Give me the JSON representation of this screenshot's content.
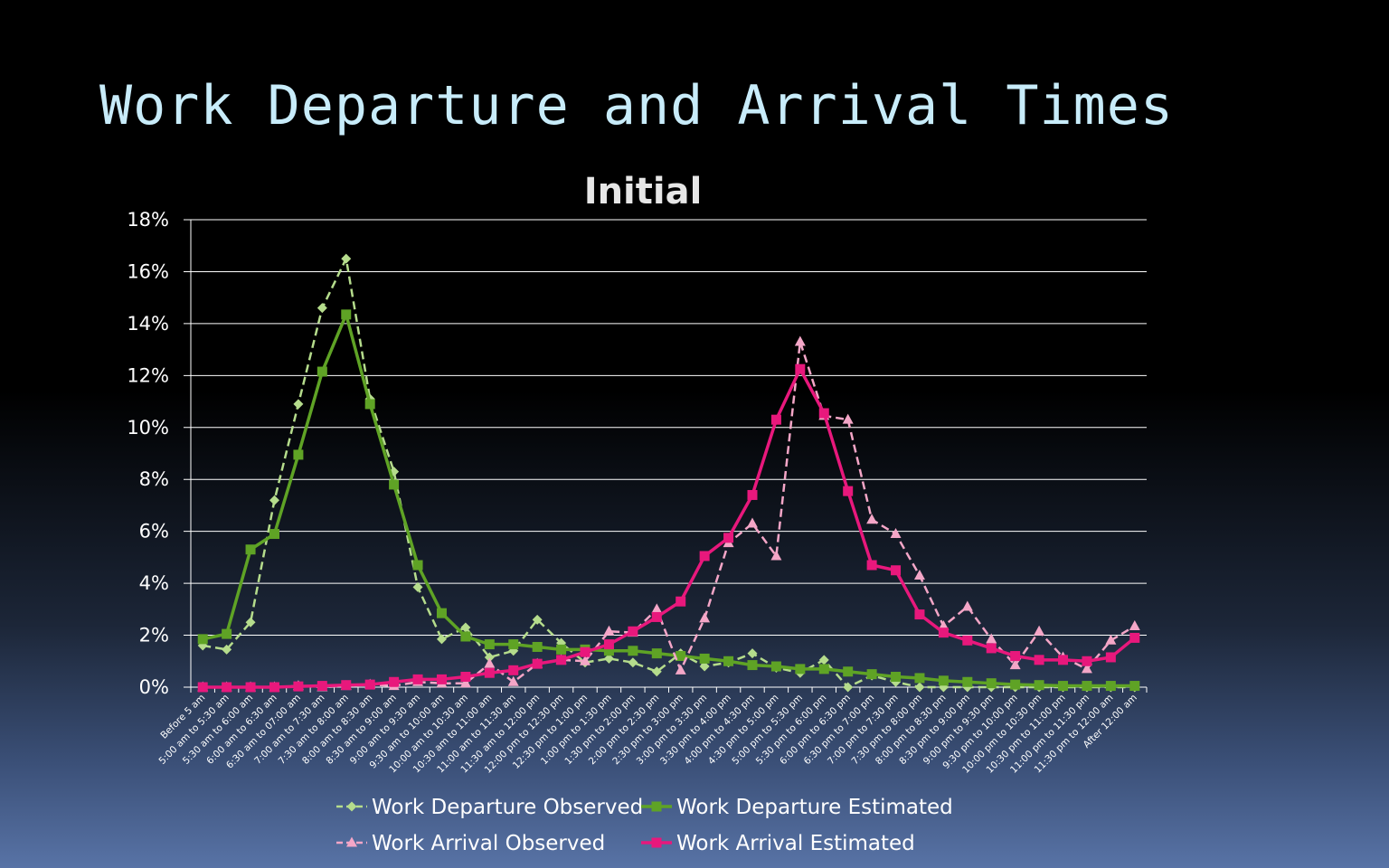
{
  "slide": {
    "title": "Work Departure and Arrival Times"
  },
  "chart_data": {
    "type": "line",
    "title": "Initial",
    "xlabel": "",
    "ylabel": "",
    "ylim": [
      0,
      18
    ],
    "y_tick_values": [
      0,
      2,
      4,
      6,
      8,
      10,
      12,
      14,
      16,
      18
    ],
    "y_tick_labels": [
      "0%",
      "2%",
      "4%",
      "6%",
      "8%",
      "10%",
      "12%",
      "14%",
      "16%",
      "18%"
    ],
    "grid": true,
    "legend_position": "bottom",
    "categories": [
      "Before 5 am",
      "5:00 am to 5:30 am",
      "5:30 am to 6:00 am",
      "6:00 am to 6:30 am",
      "6:30 am to 07:00 am",
      "7:00 am to 7:30 am",
      "7:30 am to 8:00 am",
      "8:00 am to 8:30 am",
      "8:30 am to 9:00 am",
      "9:00 am to 9:30 am",
      "9:30 am to 10:00 am",
      "10:00 am to 10:30 am",
      "10:30 am to 11:00 am",
      "11:00 am to 11:30 am",
      "11:30 am to 12:00 pm",
      "12:00 pm to 12:30 pm",
      "12:30 pm to 1:00 pm",
      "1:00 pm to 1:30 pm",
      "1:30 pm to 2:00 pm",
      "2:00 pm to 2:30 pm",
      "2:30 pm to 3:00 pm",
      "3:00 pm to 3:30 pm",
      "3:30 pm to 4:00 pm",
      "4:00 pm to 4:30 pm",
      "4:30 pm to 5:00 pm",
      "5:00 pm to 5:30 pm",
      "5:30 pm to 6:00 pm",
      "6:00 pm to 6:30 pm",
      "6:30 pm to 7:00 pm",
      "7:00 pm to 7:30 pm",
      "7:30 pm to 8:00 pm",
      "8:00 pm to 8:30 pm",
      "8:30 pm to 9:00 pm",
      "9:00 pm to 9:30 pm",
      "9:30 pm to 10:00 pm",
      "10:00 pm to 10:30 pm",
      "10:30 pm to 11:00 pm",
      "11:00 pm to 11:30 pm",
      "11:30 pm to 12:00 am",
      "After 12:00 am"
    ],
    "series": [
      {
        "name": "Work Departure Observed",
        "color": "#b5dc8c",
        "dashed": true,
        "marker": "diamond",
        "values": [
          1.6,
          1.45,
          2.5,
          7.2,
          10.9,
          14.6,
          16.5,
          11.1,
          8.3,
          3.85,
          1.85,
          2.3,
          1.15,
          1.4,
          2.6,
          1.7,
          0.95,
          1.1,
          0.95,
          0.6,
          1.3,
          0.8,
          0.95,
          1.3,
          0.75,
          0.55,
          1.05,
          0.0,
          0.45,
          0.2,
          0.0,
          0.0,
          0.0,
          0.0,
          0.0,
          0.0,
          0.0,
          0.0,
          0.0,
          0.0
        ]
      },
      {
        "name": "Work Departure Estimated",
        "color": "#5fa325",
        "dashed": false,
        "marker": "square",
        "values": [
          1.85,
          2.05,
          5.3,
          5.9,
          8.95,
          12.15,
          14.35,
          10.9,
          7.8,
          4.7,
          2.85,
          1.95,
          1.65,
          1.65,
          1.55,
          1.45,
          1.45,
          1.4,
          1.4,
          1.3,
          1.2,
          1.1,
          1.0,
          0.85,
          0.8,
          0.7,
          0.7,
          0.6,
          0.5,
          0.4,
          0.35,
          0.25,
          0.2,
          0.15,
          0.1,
          0.08,
          0.05,
          0.05,
          0.05,
          0.05
        ]
      },
      {
        "name": "Work Arrival Observed",
        "color": "#f4a6c7",
        "dashed": true,
        "marker": "triangle",
        "values": [
          0.0,
          0.0,
          0.0,
          0.0,
          0.05,
          0.0,
          0.05,
          0.1,
          0.05,
          0.2,
          0.15,
          0.15,
          0.9,
          0.2,
          0.9,
          1.05,
          1.0,
          2.15,
          2.1,
          3.0,
          0.65,
          2.65,
          5.55,
          6.3,
          5.05,
          13.3,
          10.45,
          10.3,
          6.45,
          5.9,
          4.3,
          2.35,
          3.1,
          1.85,
          0.85,
          2.15,
          1.15,
          0.7,
          1.8,
          2.35
        ]
      },
      {
        "name": "Work Arrival Estimated",
        "color": "#e8187c",
        "dashed": false,
        "marker": "square",
        "values": [
          0.0,
          0.0,
          0.0,
          0.0,
          0.03,
          0.05,
          0.08,
          0.1,
          0.2,
          0.3,
          0.3,
          0.4,
          0.55,
          0.65,
          0.9,
          1.05,
          1.35,
          1.65,
          2.15,
          2.7,
          3.3,
          5.05,
          5.75,
          7.4,
          10.3,
          12.25,
          10.55,
          7.55,
          4.7,
          4.5,
          2.8,
          2.1,
          1.8,
          1.5,
          1.2,
          1.05,
          1.05,
          1.0,
          1.15,
          1.9
        ]
      }
    ]
  }
}
